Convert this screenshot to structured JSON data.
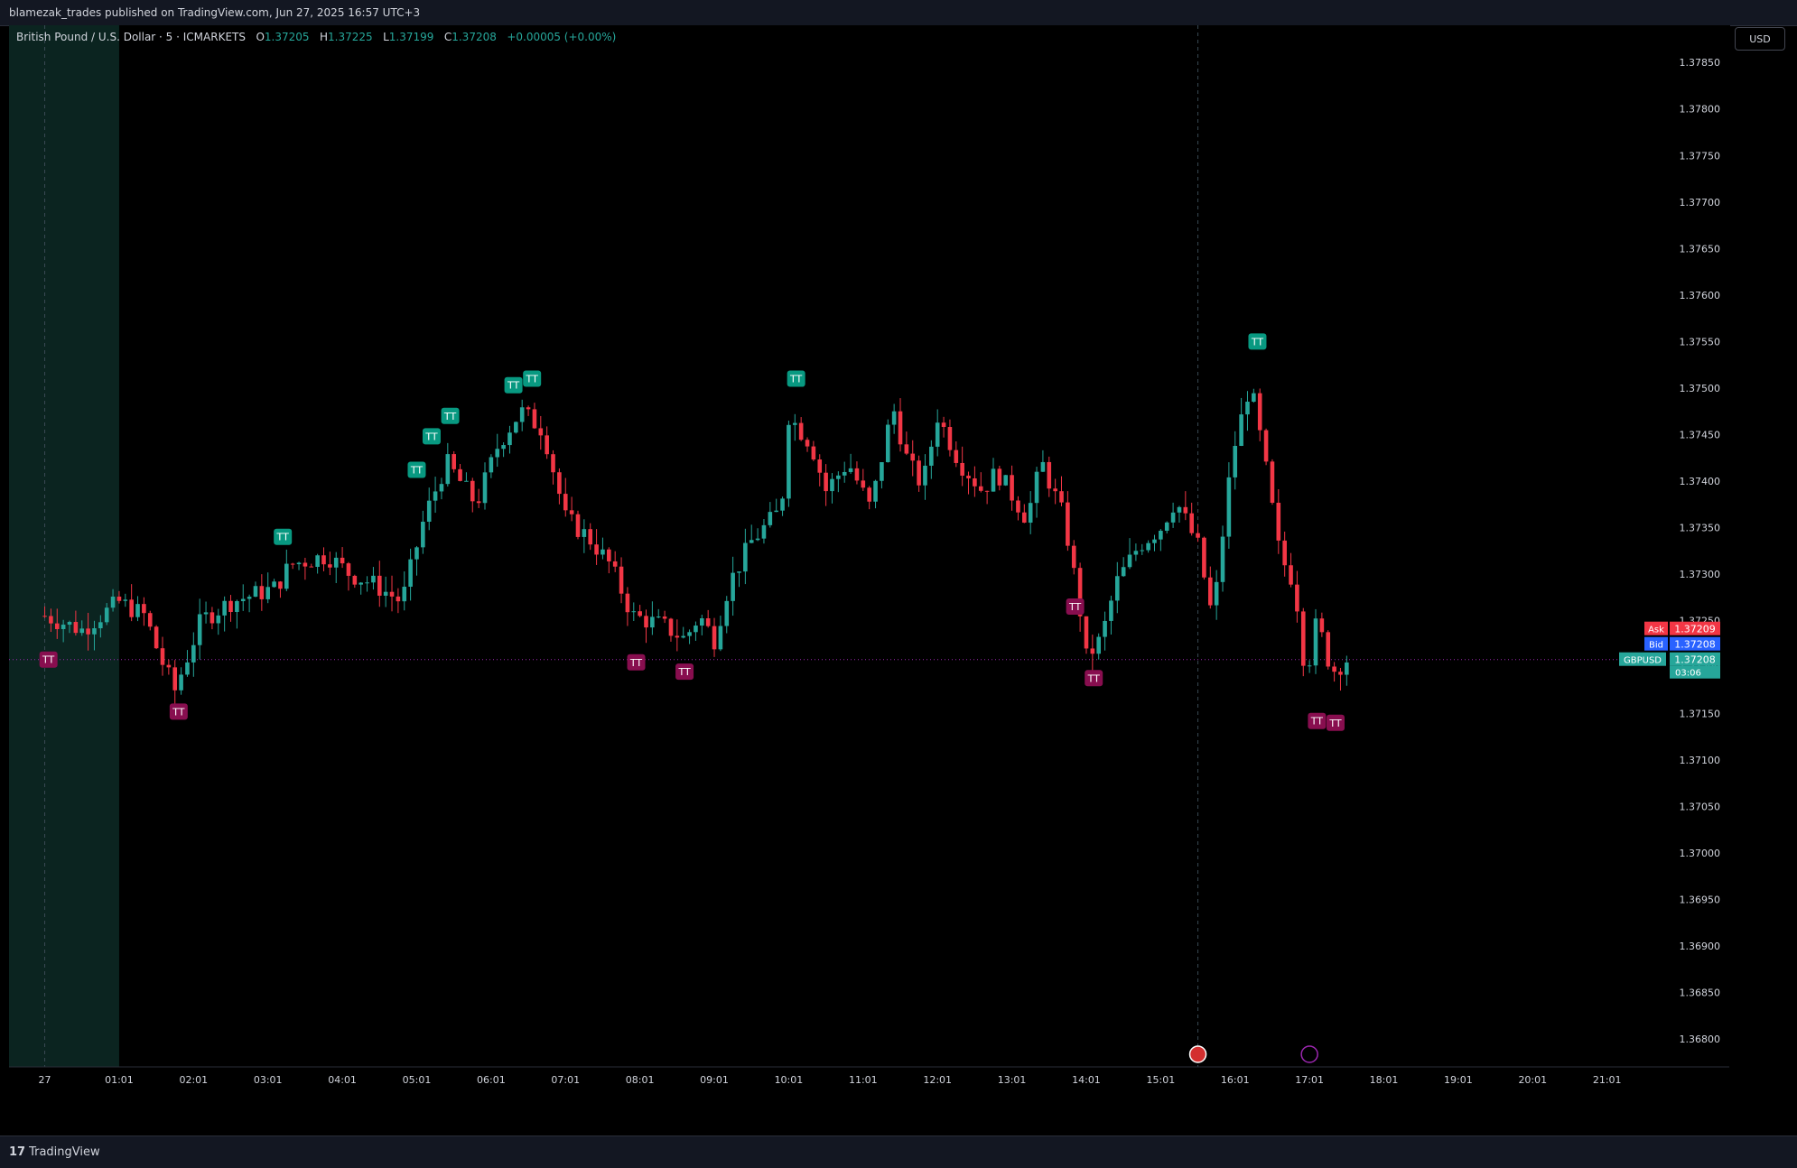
{
  "header": {
    "publish_text": "blamezak_trades published on TradingView.com, Jun 27, 2025 16:57 UTC+3"
  },
  "legend": {
    "symbol": "British Pound / U.S. Dollar · 5 · ICMARKETS",
    "o_label": "O",
    "o_value": "1.37205",
    "h_label": "H",
    "h_value": "1.37225",
    "l_label": "L",
    "l_value": "1.37199",
    "c_label": "C",
    "c_value": "1.37208",
    "change": "+0.00005 (+0.00%)"
  },
  "currency_button": "USD",
  "footer": {
    "brand": "TradingView"
  },
  "price_tags": {
    "ask_label": "Ask",
    "ask_value": "1.37209",
    "bid_label": "Bid",
    "bid_value": "1.37208",
    "symbol_label": "GBPUSD",
    "last_value": "1.37208",
    "countdown": "03:06"
  },
  "colors": {
    "up": "#26a69a",
    "down": "#f23645",
    "session_bg": "#0b2420",
    "ask": "#f23645",
    "bid": "#2962ff",
    "tt_up": "#089981",
    "tt_down": "#880e4f"
  },
  "chart_data": {
    "type": "candlestick",
    "symbol": "GBPUSD",
    "timeframe": "5",
    "ylim": [
      1.3677,
      1.3789
    ],
    "y_ticks": [
      "1.37850",
      "1.37800",
      "1.37750",
      "1.37700",
      "1.37650",
      "1.37600",
      "1.37550",
      "1.37500",
      "1.37450",
      "1.37400",
      "1.37350",
      "1.37300",
      "1.37250",
      "1.37200",
      "1.37150",
      "1.37100",
      "1.37050",
      "1.37000",
      "1.36950",
      "1.36900",
      "1.36850",
      "1.36800"
    ],
    "x_labels": [
      "27",
      "01:01",
      "02:01",
      "03:01",
      "04:01",
      "05:01",
      "06:01",
      "07:01",
      "08:01",
      "09:01",
      "10:01",
      "11:01",
      "12:01",
      "13:01",
      "14:01",
      "15:01",
      "16:01",
      "17:01",
      "18:01",
      "19:01",
      "20:01",
      "21:01"
    ],
    "x_hours": [
      0,
      1,
      2,
      3,
      4,
      5,
      6,
      7,
      8,
      9,
      10,
      11,
      12,
      13,
      14,
      15,
      16,
      17,
      18,
      19,
      20,
      21
    ],
    "hour_range": [
      -0.48,
      21.55
    ],
    "current_price": 1.37208,
    "close_path": [
      [
        0,
        1.37255
      ],
      [
        0.5,
        1.3724
      ],
      [
        1.0,
        1.3727
      ],
      [
        1.35,
        1.37255
      ],
      [
        1.55,
        1.3721
      ],
      [
        1.75,
        1.37175
      ],
      [
        2.1,
        1.3725
      ],
      [
        2.5,
        1.3727
      ],
      [
        3.1,
        1.37285
      ],
      [
        3.3,
        1.3731
      ],
      [
        3.8,
        1.3732
      ],
      [
        4.1,
        1.373
      ],
      [
        4.4,
        1.3729
      ],
      [
        4.8,
        1.3727
      ],
      [
        5.1,
        1.3736
      ],
      [
        5.4,
        1.3742
      ],
      [
        5.8,
        1.37375
      ],
      [
        6.1,
        1.3744
      ],
      [
        6.4,
        1.37475
      ],
      [
        6.7,
        1.37455
      ],
      [
        7.0,
        1.3736
      ],
      [
        7.3,
        1.3734
      ],
      [
        7.6,
        1.3731
      ],
      [
        7.9,
        1.37255
      ],
      [
        8.3,
        1.37245
      ],
      [
        8.6,
        1.3723
      ],
      [
        8.8,
        1.37255
      ],
      [
        9.0,
        1.3723
      ],
      [
        9.2,
        1.3729
      ],
      [
        9.5,
        1.37335
      ],
      [
        9.9,
        1.3737
      ],
      [
        10.0,
        1.3747
      ],
      [
        10.3,
        1.3744
      ],
      [
        10.5,
        1.3739
      ],
      [
        10.8,
        1.3742
      ],
      [
        11.1,
        1.3737
      ],
      [
        11.4,
        1.3748
      ],
      [
        11.6,
        1.3742
      ],
      [
        11.8,
        1.37395
      ],
      [
        12.0,
        1.3747
      ],
      [
        12.3,
        1.3742
      ],
      [
        12.6,
        1.3739
      ],
      [
        12.8,
        1.3741
      ],
      [
        13.2,
        1.3736
      ],
      [
        13.4,
        1.3742
      ],
      [
        13.7,
        1.3736
      ],
      [
        13.9,
        1.3727
      ],
      [
        14.0,
        1.3721
      ],
      [
        14.2,
        1.3723
      ],
      [
        14.4,
        1.3729
      ],
      [
        14.7,
        1.3733
      ],
      [
        15.0,
        1.3735
      ],
      [
        15.2,
        1.3738
      ],
      [
        15.5,
        1.3733
      ],
      [
        15.7,
        1.3725
      ],
      [
        15.9,
        1.3739
      ],
      [
        16.0,
        1.3744
      ],
      [
        16.2,
        1.37505
      ],
      [
        16.4,
        1.3742
      ],
      [
        16.6,
        1.3732
      ],
      [
        16.8,
        1.3729
      ],
      [
        16.95,
        1.3719
      ],
      [
        17.1,
        1.3725
      ],
      [
        17.3,
        1.37195
      ],
      [
        17.5,
        1.37208
      ]
    ],
    "tt_markers": [
      {
        "h": 0.05,
        "price": 1.37208,
        "kind": "down"
      },
      {
        "h": 1.8,
        "price": 1.37152,
        "kind": "down"
      },
      {
        "h": 3.2,
        "price": 1.3734,
        "kind": "up"
      },
      {
        "h": 5.0,
        "price": 1.37412,
        "kind": "up"
      },
      {
        "h": 5.2,
        "price": 1.37448,
        "kind": "up"
      },
      {
        "h": 5.45,
        "price": 1.3747,
        "kind": "up"
      },
      {
        "h": 6.3,
        "price": 1.37503,
        "kind": "up"
      },
      {
        "h": 6.55,
        "price": 1.3751,
        "kind": "up"
      },
      {
        "h": 7.95,
        "price": 1.37205,
        "kind": "down"
      },
      {
        "h": 8.6,
        "price": 1.37195,
        "kind": "down"
      },
      {
        "h": 10.1,
        "price": 1.3751,
        "kind": "up"
      },
      {
        "h": 13.85,
        "price": 1.37265,
        "kind": "down"
      },
      {
        "h": 14.1,
        "price": 1.37188,
        "kind": "down"
      },
      {
        "h": 16.3,
        "price": 1.3755,
        "kind": "up"
      },
      {
        "h": 17.1,
        "price": 1.37142,
        "kind": "down"
      },
      {
        "h": 17.35,
        "price": 1.3714,
        "kind": "down"
      }
    ],
    "session_shade_until_hour": 1.0,
    "vertical_markers_hours": [
      0.0,
      15.5
    ],
    "event_icons": [
      {
        "h": 15.5,
        "name": "us-flag-event"
      },
      {
        "h": 17.0,
        "name": "lightning-event"
      }
    ]
  }
}
